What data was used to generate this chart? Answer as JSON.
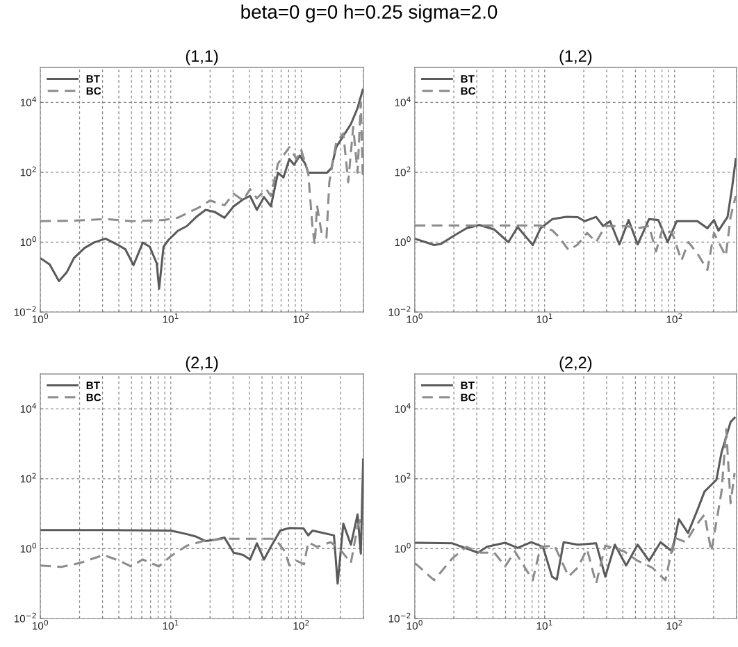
{
  "chart_data": [
    {
      "type": "line",
      "title": "(1,1)",
      "annotations": [
        "beta=0 g=0 h=0.25 sigma=2.0"
      ],
      "log": "xy",
      "grid": true,
      "legend": "top left",
      "xlim": [
        1,
        300
      ],
      "ylim": [
        0.01,
        100000
      ],
      "xticks": [
        {
          "value": 1,
          "label": "10$^{0}$"
        },
        {
          "value": 10,
          "label": "10$^{1}$"
        },
        {
          "value": 100,
          "label": "10$^{2}$"
        }
      ],
      "yticks": [
        {
          "value": 0.01,
          "label": "10$^{−2}$"
        },
        {
          "value": 1,
          "label": "10$^{0}$"
        },
        {
          "value": 100,
          "label": "10$^{2}$"
        },
        {
          "value": 10000,
          "label": "10$^{4}$"
        }
      ],
      "series": [
        {
          "name": "BT",
          "color": "#5a5a5a",
          "line_style": "solid",
          "x": [
            1,
            1.18,
            1.39,
            1.6,
            1.81,
            2.18,
            2.57,
            3.16,
            3.88,
            4.48,
            5.18,
            6.1,
            6.9,
            7.8,
            8.14,
            8.8,
            9.6,
            11.3,
            13.3,
            15.7,
            18.5,
            21.8,
            25.8,
            30.3,
            35.8,
            40.5,
            45.7,
            51.8,
            58.5,
            66.3,
            73,
            81,
            88,
            97.5,
            107,
            113,
            157,
            170,
            185,
            210,
            240,
            270,
            296
          ],
          "values": [
            0.35,
            0.23,
            0.077,
            0.14,
            0.35,
            0.68,
            0.97,
            1.26,
            0.86,
            0.63,
            0.22,
            0.97,
            0.74,
            0.25,
            0.047,
            0.74,
            1.16,
            2.1,
            2.9,
            5.3,
            8.4,
            7.3,
            5.0,
            10.6,
            16.7,
            21,
            8.4,
            19.5,
            10.6,
            97,
            71,
            240,
            165,
            300,
            178,
            97,
            97,
            130,
            520,
            1100,
            2400,
            6900,
            23000
          ]
        },
        {
          "name": "BC",
          "color": "#8c8c8c",
          "line_style": "dashed",
          "x": [
            1,
            1.78,
            3.16,
            4.97,
            8.8,
            11.3,
            13.9,
            16.4,
            20,
            25.8,
            30.3,
            35.8,
            40.5,
            45.7,
            53.9,
            58.5,
            66.3,
            81,
            92,
            99.6,
            113,
            122,
            127,
            132,
            143,
            156,
            164,
            185,
            210,
            229,
            250,
            270,
            286,
            296
          ],
          "values": [
            4.0,
            4.1,
            4.6,
            4.0,
            4.3,
            5.0,
            7.3,
            9.8,
            15.6,
            11.4,
            24.5,
            15.6,
            33,
            18,
            33,
            21,
            178,
            520,
            240,
            450,
            97,
            2.5,
            0.86,
            11.4,
            1.84,
            1.36,
            52,
            700,
            1300,
            52,
            2000,
            97,
            10000,
            71
          ]
        }
      ]
    },
    {
      "type": "line",
      "title": "(1,2)",
      "log": "xy",
      "grid": true,
      "legend": "top left",
      "xlim": [
        1,
        300
      ],
      "ylim": [
        0.01,
        100000
      ],
      "xticks": [
        {
          "value": 1,
          "label": "10$^{0}$"
        },
        {
          "value": 10,
          "label": "10$^{1}$"
        },
        {
          "value": 100,
          "label": "10$^{2}$"
        }
      ],
      "yticks": [
        {
          "value": 0.01,
          "label": "10$^{−2}$"
        },
        {
          "value": 1,
          "label": "10$^{0}$"
        },
        {
          "value": 100,
          "label": "10$^{2}$"
        },
        {
          "value": 10000,
          "label": "10$^{4}$"
        }
      ],
      "series": [
        {
          "name": "BT",
          "color": "#5a5a5a",
          "line_style": "solid",
          "x": [
            1,
            1.41,
            1.59,
            2.03,
            2.5,
            3.14,
            4.1,
            5.25,
            6.2,
            8.1,
            9.3,
            11.5,
            14.7,
            18,
            20.3,
            24.9,
            28.2,
            31.9,
            37.6,
            44.3,
            52,
            63.7,
            75,
            88.5,
            104,
            150,
            179,
            201,
            218,
            256,
            278,
            296
          ],
          "values": [
            1.26,
            0.83,
            0.89,
            1.58,
            2.5,
            3.1,
            2.3,
            1.0,
            2.7,
            0.83,
            2.5,
            4.6,
            5.3,
            5.2,
            4.0,
            5.3,
            2.9,
            4.0,
            0.86,
            4.3,
            0.86,
            4.6,
            4.3,
            1.0,
            4.0,
            4.0,
            2.5,
            4.3,
            2.14,
            5.3,
            39,
            240
          ]
        },
        {
          "name": "BC",
          "color": "#8c8c8c",
          "line_style": "dashed",
          "x": [
            1,
            2.94,
            4.8,
            9.3,
            11.5,
            13,
            15.3,
            18,
            21.2,
            24.9,
            29.3,
            34.6,
            42.4,
            52,
            63.7,
            72,
            81,
            96,
            113,
            128,
            150,
            179,
            201,
            248,
            270,
            296
          ],
          "values": [
            3.0,
            3.0,
            3.0,
            3.0,
            2.14,
            1.36,
            0.59,
            0.86,
            1.84,
            1.0,
            2.9,
            2.9,
            2.9,
            2.5,
            2.9,
            0.54,
            2.5,
            1.84,
            0.3,
            1.0,
            0.47,
            0.16,
            1.84,
            0.4,
            5.3,
            21
          ]
        }
      ]
    },
    {
      "type": "line",
      "title": "(2,1)",
      "log": "xy",
      "grid": true,
      "legend": "top left",
      "xlim": [
        1,
        300
      ],
      "ylim": [
        0.01,
        100000
      ],
      "xticks": [
        {
          "value": 1,
          "label": "10$^{0}$"
        },
        {
          "value": 10,
          "label": "10$^{1}$"
        },
        {
          "value": 100,
          "label": "10$^{2}$"
        }
      ],
      "yticks": [
        {
          "value": 0.01,
          "label": "10$^{−2}$"
        },
        {
          "value": 1,
          "label": "10$^{0}$"
        },
        {
          "value": 100,
          "label": "10$^{2}$"
        },
        {
          "value": 10000,
          "label": "10$^{4}$"
        }
      ],
      "series": [
        {
          "name": "BT",
          "color": "#5a5a5a",
          "line_style": "solid",
          "x": [
            1,
            3.3,
            10,
            13.3,
            15.7,
            18.5,
            21.8,
            25.8,
            30.3,
            35.8,
            40.5,
            45.7,
            51.8,
            58.5,
            69,
            81,
            104,
            113,
            122,
            178,
            190,
            210,
            240,
            270,
            286,
            298
          ],
          "values": [
            3.4,
            3.4,
            3.3,
            2.6,
            2.2,
            1.65,
            1.8,
            2.07,
            0.77,
            0.66,
            0.49,
            1.42,
            0.49,
            1.13,
            3.3,
            3.9,
            3.8,
            2.4,
            3.3,
            2.4,
            0.1,
            5.2,
            1.3,
            9.5,
            0.72,
            360
          ]
        },
        {
          "name": "BC",
          "color": "#8c8c8c",
          "line_style": "dashed",
          "x": [
            1,
            1.45,
            2.01,
            3.06,
            4.04,
            4.97,
            6.1,
            8.1,
            10,
            13.3,
            18.5,
            25.8,
            38.8,
            63,
            75,
            81,
            92,
            105,
            113,
            132,
            168,
            198,
            240,
            270,
            296
          ],
          "values": [
            0.33,
            0.3,
            0.39,
            0.66,
            0.45,
            0.31,
            0.49,
            0.31,
            0.61,
            1.22,
            1.73,
            1.92,
            1.92,
            1.92,
            0.83,
            0.33,
            0.45,
            0.36,
            1.53,
            1.13,
            1.53,
            0.97,
            0.39,
            4.4,
            9.5
          ]
        }
      ]
    },
    {
      "type": "line",
      "title": "(2,2)",
      "log": "xy",
      "grid": true,
      "legend": "top left",
      "xlim": [
        1,
        300
      ],
      "ylim": [
        0.01,
        100000
      ],
      "xticks": [
        {
          "value": 1,
          "label": "10$^{0}$"
        },
        {
          "value": 10,
          "label": "10$^{1}$"
        },
        {
          "value": 100,
          "label": "10$^{2}$"
        }
      ],
      "yticks": [
        {
          "value": 0.01,
          "label": "10$^{−2}$"
        },
        {
          "value": 1,
          "label": "10$^{0}$"
        },
        {
          "value": 100,
          "label": "10$^{2}$"
        },
        {
          "value": 10000,
          "label": "10$^{4}$"
        }
      ],
      "series": [
        {
          "name": "BT",
          "color": "#5a5a5a",
          "line_style": "solid",
          "x": [
            1,
            1.95,
            3.07,
            3.6,
            4.96,
            6.2,
            7.9,
            9.7,
            11.4,
            12.4,
            14.0,
            18,
            24.9,
            29.3,
            34.7,
            42.4,
            52,
            63.7,
            78,
            96,
            108,
            127,
            150,
            170,
            210,
            230,
            270,
            290
          ],
          "values": [
            1.48,
            1.42,
            0.77,
            1.13,
            1.48,
            1.05,
            1.53,
            1.13,
            0.157,
            0.13,
            1.53,
            1.3,
            1.42,
            0.157,
            1.3,
            0.33,
            1.3,
            0.45,
            1.53,
            0.83,
            7,
            2.8,
            12.8,
            43,
            93,
            570,
            4200,
            5600
          ]
        },
        {
          "name": "BC",
          "color": "#8c8c8c",
          "line_style": "dashed",
          "x": [
            1,
            1.41,
            1.95,
            2.5,
            3.2,
            4.1,
            4.96,
            5.9,
            8.1,
            9.3,
            11.9,
            15.3,
            18,
            21.2,
            24.9,
            29.3,
            41,
            52,
            67,
            85,
            100,
            122,
            145,
            170,
            192,
            230,
            250,
            270,
            290
          ],
          "values": [
            0.39,
            0.125,
            0.53,
            1.13,
            0.77,
            0.77,
            0.31,
            0.83,
            0.125,
            1.13,
            1.22,
            0.16,
            0.29,
            0.97,
            0.1,
            1.22,
            0.83,
            0.45,
            0.29,
            0.125,
            2.07,
            1.53,
            4.4,
            9.5,
            0.83,
            43,
            2600,
            20,
            146
          ]
        }
      ]
    }
  ]
}
